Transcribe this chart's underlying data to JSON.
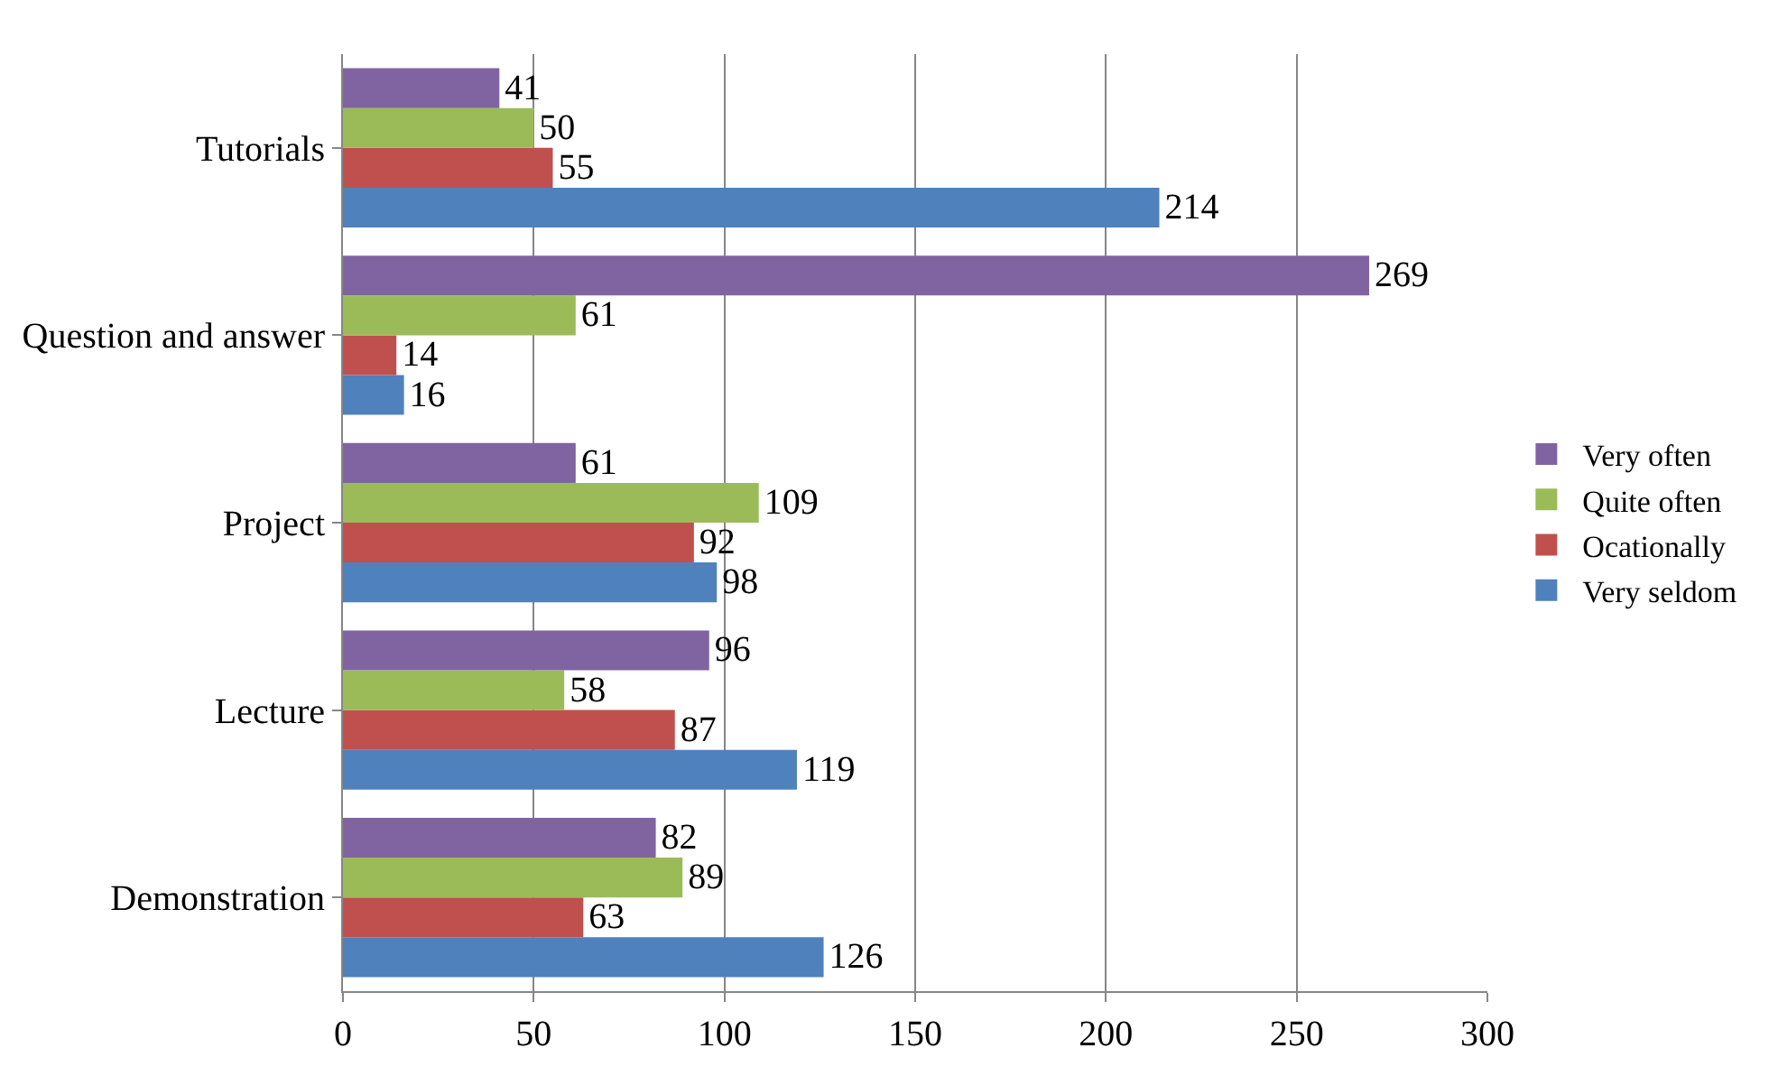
{
  "chart_data": {
    "type": "bar",
    "orientation": "horizontal",
    "categories": [
      "Tutorials",
      "Question and answer",
      "Project",
      "Lecture",
      "Demonstration"
    ],
    "series": [
      {
        "name": "Very seldom",
        "color": "#4f81bd",
        "values": [
          214,
          16,
          98,
          119,
          126
        ]
      },
      {
        "name": "Ocationally",
        "color": "#c0504d",
        "values": [
          55,
          14,
          92,
          87,
          63
        ]
      },
      {
        "name": "Quite often",
        "color": "#9bbb59",
        "values": [
          50,
          61,
          109,
          58,
          89
        ]
      },
      {
        "name": "Very often",
        "color": "#8064a2",
        "values": [
          41,
          269,
          61,
          96,
          82
        ]
      }
    ],
    "xlim": [
      0,
      300
    ],
    "xticks": [
      0,
      50,
      100,
      150,
      200,
      250,
      300
    ],
    "grid": "x",
    "legend": "right",
    "data_labels": true
  }
}
